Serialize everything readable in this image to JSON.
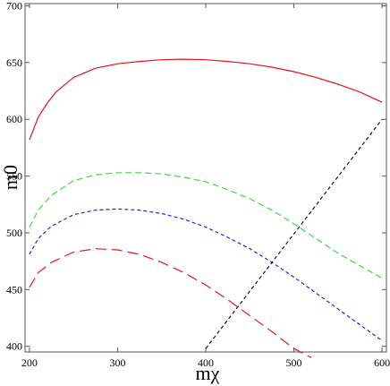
{
  "chart_data": {
    "type": "line",
    "title": "",
    "xlabel": "mχ",
    "ylabel": "m0",
    "xlim": [
      195,
      605
    ],
    "ylim": [
      395,
      702
    ],
    "x_ticks": [
      200,
      300,
      400,
      500,
      600
    ],
    "x_tick_labels": [
      "200",
      "300",
      "400",
      "500",
      "600"
    ],
    "y_ticks": [
      400,
      450,
      500,
      550,
      600,
      650,
      700
    ],
    "y_tick_labels": [
      "400",
      "450",
      "500",
      "550",
      "600",
      "650",
      "700"
    ],
    "grid": false,
    "legend": "none",
    "series": [
      {
        "color": "#e8141b",
        "dash": "solid",
        "x": [
          200,
          205,
          210,
          220,
          230,
          250,
          275,
          300,
          325,
          350,
          375,
          400,
          425,
          450,
          475,
          500,
          525,
          550,
          575,
          600
        ],
        "y": [
          582,
          592,
          602,
          614,
          624,
          637,
          645,
          649,
          651,
          652.5,
          653,
          652.5,
          651,
          649,
          646,
          642,
          637,
          631,
          624,
          615
        ]
      },
      {
        "color": "#33e233",
        "dash": "medium",
        "x": [
          200,
          210,
          225,
          250,
          275,
          300,
          325,
          350,
          375,
          400,
          425,
          450,
          475,
          500,
          525,
          550,
          575,
          600
        ],
        "y": [
          505,
          520,
          533,
          546,
          551,
          553,
          553,
          552,
          549,
          545,
          538,
          530,
          520,
          508,
          495,
          482,
          471,
          460
        ]
      },
      {
        "color": "#2424dc",
        "dash": "short",
        "x": [
          200,
          210,
          225,
          250,
          275,
          300,
          325,
          350,
          375,
          400,
          425,
          450,
          475,
          500,
          525,
          550,
          575,
          600
        ],
        "y": [
          481,
          495,
          506,
          516,
          520,
          521,
          520,
          517,
          512,
          505,
          496,
          486,
          474,
          461,
          447,
          433,
          419,
          405
        ]
      },
      {
        "color": "#e8141b",
        "dash": "long",
        "x": [
          200,
          210,
          225,
          250,
          275,
          300,
          325,
          350,
          375,
          400,
          425,
          450,
          475,
          500,
          520
        ],
        "y": [
          452,
          465,
          474,
          483,
          486,
          485,
          481,
          474,
          465,
          454,
          441,
          427,
          413,
          398,
          390
        ]
      },
      {
        "color": "#111111",
        "dash": "short",
        "x": [
          400,
          600
        ],
        "y": [
          398,
          600
        ]
      }
    ]
  }
}
